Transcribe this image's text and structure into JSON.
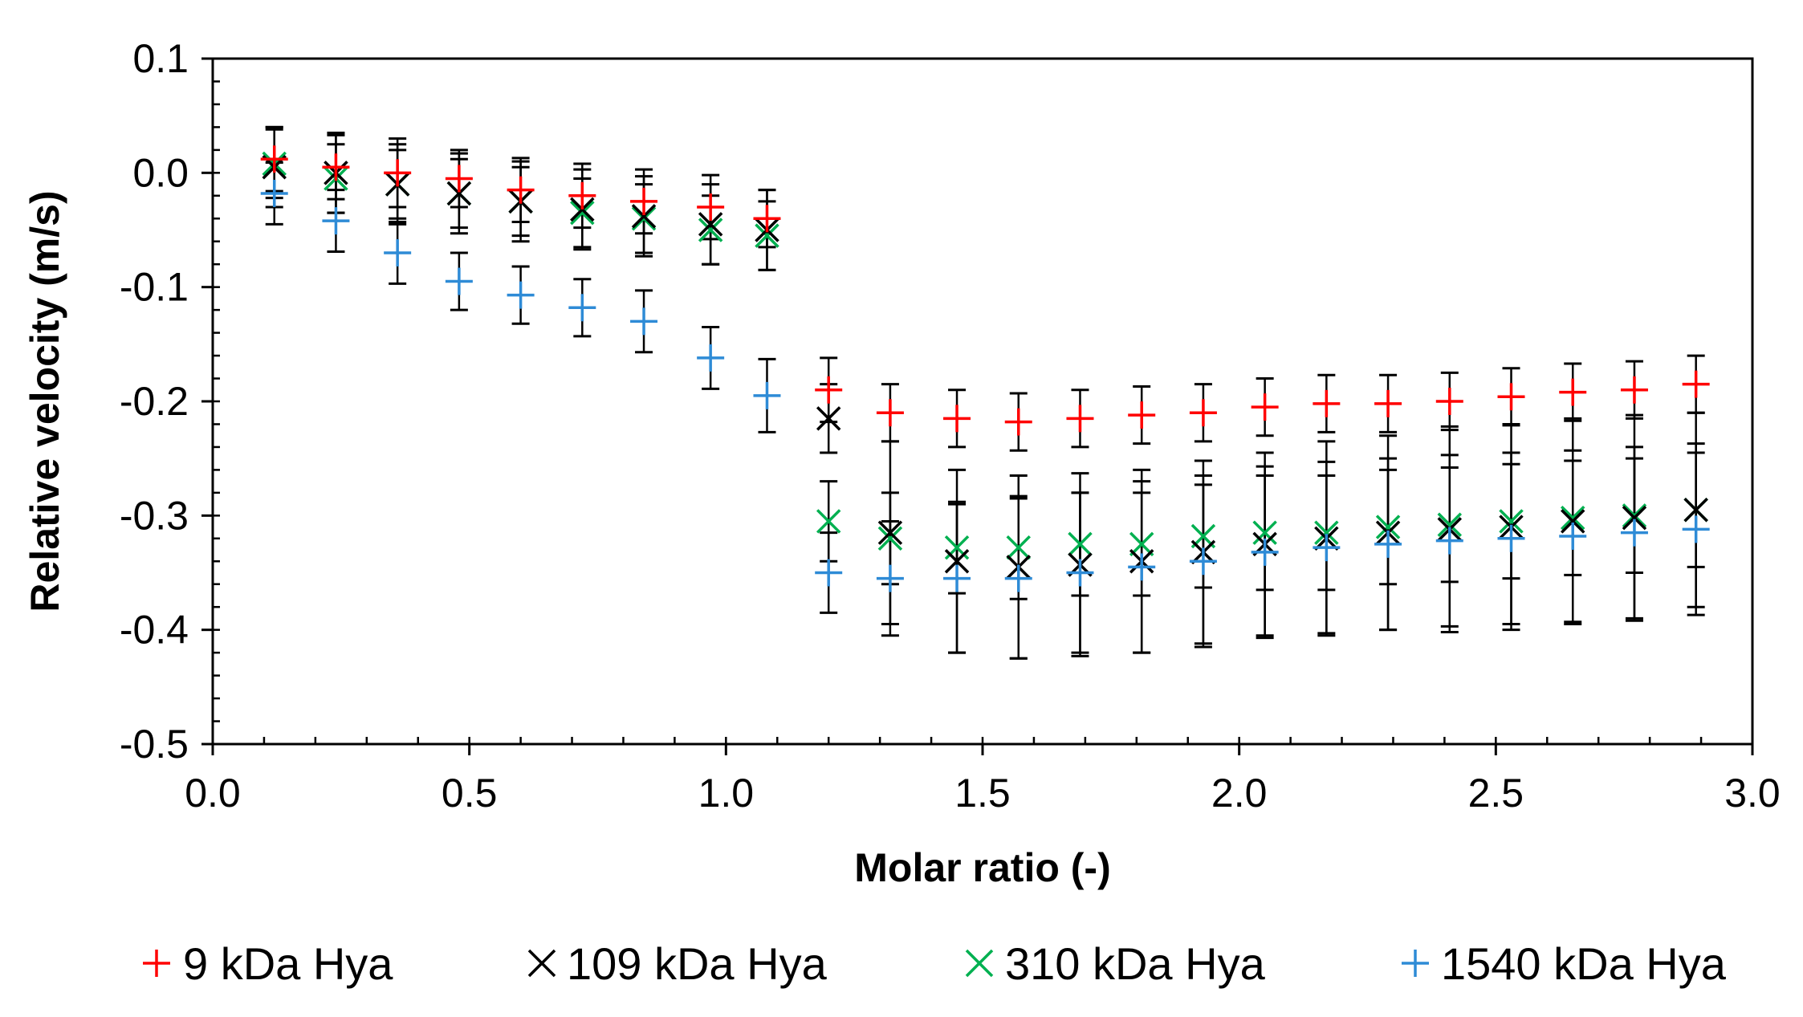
{
  "chart_data": {
    "type": "scatter",
    "title": "",
    "xlabel": "Molar ratio (-)",
    "ylabel": "Relative velocity (m/s)",
    "xlim": [
      0.0,
      3.0
    ],
    "ylim": [
      -0.5,
      0.1
    ],
    "xticks": [
      0.0,
      0.5,
      1.0,
      1.5,
      2.0,
      2.5,
      3.0
    ],
    "xtick_labels": [
      "0.0",
      "0.5",
      "1.0",
      "1.5",
      "2.0",
      "2.5",
      "3.0"
    ],
    "yticks": [
      0.1,
      0.0,
      -0.1,
      -0.2,
      -0.3,
      -0.4,
      -0.5
    ],
    "ytick_labels": [
      "0.1",
      "0.0",
      "-0.1",
      "-0.2",
      "-0.3",
      "-0.4",
      "-0.5"
    ],
    "grid": false,
    "legend_position": "bottom",
    "x": [
      0.12,
      0.24,
      0.36,
      0.48,
      0.6,
      0.72,
      0.84,
      0.97,
      1.08,
      1.2,
      1.32,
      1.45,
      1.57,
      1.69,
      1.81,
      1.93,
      2.05,
      2.17,
      2.29,
      2.41,
      2.53,
      2.65,
      2.77,
      2.89
    ],
    "series": [
      {
        "name": "9 kDa Hya",
        "marker": "plus",
        "color": "#ff0000",
        "values": [
          0.012,
          0.005,
          0.0,
          -0.005,
          -0.015,
          -0.02,
          -0.025,
          -0.03,
          -0.04,
          -0.19,
          -0.21,
          -0.215,
          -0.218,
          -0.215,
          -0.212,
          -0.21,
          -0.205,
          -0.202,
          -0.202,
          -0.2,
          -0.196,
          -0.192,
          -0.19,
          -0.185
        ],
        "errors": [
          0.028,
          0.028,
          0.03,
          0.025,
          0.028,
          0.028,
          0.028,
          0.028,
          0.025,
          0.028,
          0.025,
          0.025,
          0.025,
          0.025,
          0.025,
          0.025,
          0.025,
          0.025,
          0.025,
          0.025,
          0.025,
          0.025,
          0.025,
          0.025
        ]
      },
      {
        "name": "109 kDa Hya",
        "marker": "x",
        "color": "#000000",
        "values": [
          0.005,
          0.0,
          -0.01,
          -0.018,
          -0.025,
          -0.032,
          -0.038,
          -0.045,
          -0.05,
          -0.215,
          -0.315,
          -0.34,
          -0.345,
          -0.343,
          -0.34,
          -0.332,
          -0.325,
          -0.32,
          -0.315,
          -0.312,
          -0.31,
          -0.305,
          -0.302,
          -0.295
        ],
        "errors": [
          0.035,
          0.035,
          0.035,
          0.035,
          0.035,
          0.035,
          0.035,
          0.035,
          0.035,
          0.03,
          0.08,
          0.08,
          0.08,
          0.08,
          0.08,
          0.08,
          0.08,
          0.085,
          0.085,
          0.09,
          0.09,
          0.09,
          0.09,
          0.085
        ]
      },
      {
        "name": "310 kDa Hya",
        "marker": "x",
        "color": "#00b050",
        "values": [
          0.008,
          -0.005,
          -0.01,
          -0.018,
          -0.025,
          -0.035,
          -0.04,
          -0.05,
          -0.055,
          -0.305,
          -0.32,
          -0.328,
          -0.328,
          -0.325,
          -0.325,
          -0.318,
          -0.315,
          -0.315,
          -0.31,
          -0.308,
          -0.305,
          -0.302,
          -0.3,
          -0.295
        ],
        "errors": [
          0.03,
          0.03,
          0.03,
          0.03,
          0.03,
          0.03,
          0.03,
          0.03,
          0.03,
          0.035,
          0.04,
          0.04,
          0.045,
          0.045,
          0.045,
          0.045,
          0.05,
          0.05,
          0.05,
          0.05,
          0.05,
          0.05,
          0.05,
          0.05
        ]
      },
      {
        "name": "1540 kDa Hya",
        "marker": "plus",
        "color": "#2e8bd6",
        "values": [
          -0.018,
          -0.042,
          -0.07,
          -0.095,
          -0.107,
          -0.118,
          -0.13,
          -0.162,
          -0.195,
          -0.35,
          -0.355,
          -0.355,
          -0.355,
          -0.35,
          -0.345,
          -0.34,
          -0.332,
          -0.328,
          -0.325,
          -0.322,
          -0.32,
          -0.318,
          -0.315,
          -0.312
        ],
        "errors": [
          0.027,
          0.027,
          0.027,
          0.025,
          0.025,
          0.025,
          0.027,
          0.027,
          0.032,
          0.035,
          0.05,
          0.065,
          0.07,
          0.07,
          0.075,
          0.075,
          0.075,
          0.075,
          0.075,
          0.075,
          0.075,
          0.075,
          0.075,
          0.075
        ]
      }
    ]
  }
}
